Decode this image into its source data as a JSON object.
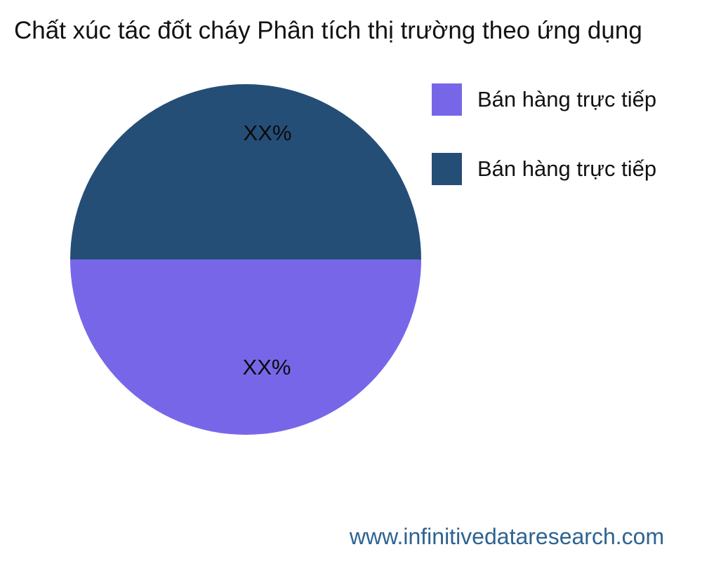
{
  "title": {
    "text": "Chất xúc tác đốt cháy Phân tích thị trường theo ứng dụng",
    "color": "#121212"
  },
  "chart_data": {
    "type": "pie",
    "title": "Chất xúc tác đốt cháy Phân tích thị trường theo ứng dụng",
    "units": "percent",
    "start_angle_deg": 180,
    "legend_position": "upper-right",
    "slices": [
      {
        "label": "Bán hàng trực tiếp",
        "value": 50,
        "value_label": "XX%",
        "color": "#7767E8",
        "position": "bottom-half"
      },
      {
        "label": "Bán hàng trực tiếp",
        "value": 50,
        "value_label": "XX%",
        "color": "#254E77",
        "position": "top-half"
      }
    ]
  },
  "footer": {
    "url": "www.infinitivedataresearch.com",
    "color": "#2E6391"
  }
}
